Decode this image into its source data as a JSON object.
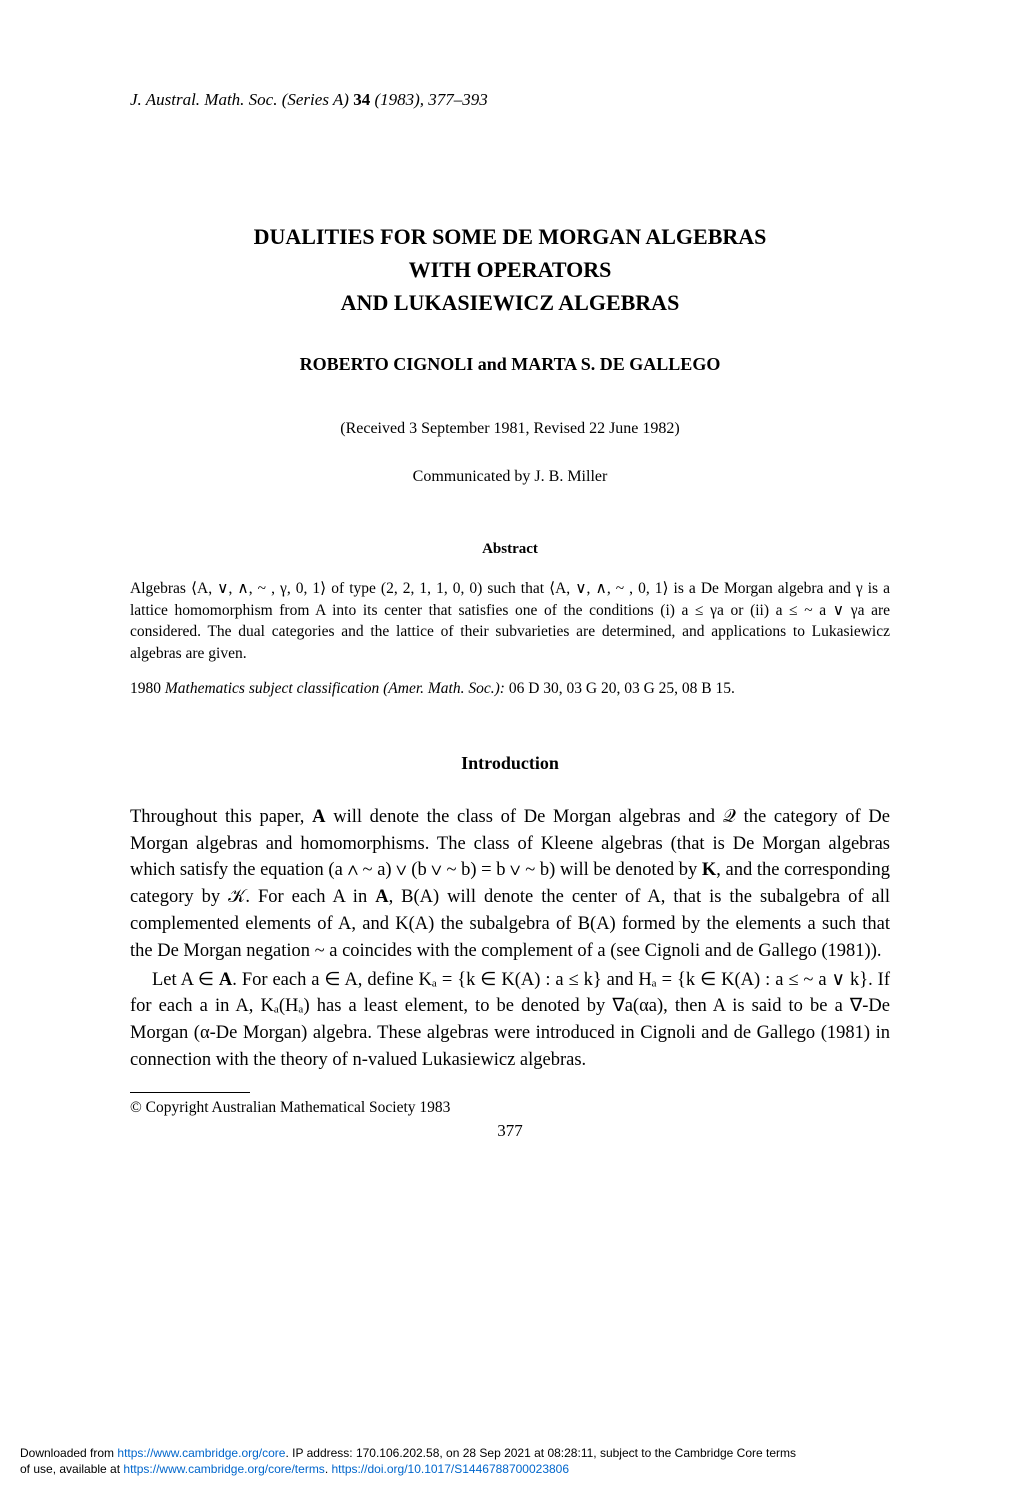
{
  "journal": {
    "name": "J. Austral. Math. Soc. (Series A)",
    "volume": "34",
    "year_pages": "(1983), 377–393"
  },
  "title": {
    "line1": "DUALITIES FOR SOME DE MORGAN ALGEBRAS",
    "line2": "WITH OPERATORS",
    "line3": "AND LUKASIEWICZ ALGEBRAS"
  },
  "authors": "ROBERTO CIGNOLI and MARTA S. DE GALLEGO",
  "received": "(Received 3 September 1981, Revised 22 June 1982)",
  "communicated": "Communicated by J. B. Miller",
  "abstract": {
    "heading": "Abstract",
    "text": "Algebras ⟨A, ∨, ∧, ~ , γ, 0, 1⟩ of type (2, 2, 1, 1, 0, 0) such that ⟨A, ∨, ∧, ~ , 0, 1⟩ is a De Morgan algebra and γ is a lattice homomorphism from A into its center that satisfies one of the conditions (i) a ≤ γa or (ii) a ≤ ~ a ∨ γa are considered. The dual categories and the lattice of their subvarieties are determined, and applications to Lukasiewicz algebras are given."
  },
  "msc": {
    "year": "1980",
    "label": "Mathematics subject classification (Amer. Math. Soc.):",
    "codes": "06 D 30, 03 G 20, 03 G 25, 08 B 15."
  },
  "intro": {
    "heading": "Introduction",
    "para1_pre": "Throughout this paper, ",
    "para1_A": "A",
    "para1_mid1": " will denote the class of De Morgan algebras and 𝒬 the category of De Morgan algebras and homomorphisms. The class of Kleene algebras (that is De Morgan algebras which satisfy the equation (a ∧ ~ a) ∨ (b ∨ ~ b) = b ∨ ~ b) will be denoted by ",
    "para1_K": "K",
    "para1_mid2": ", and the corresponding category by 𝒦. For each A in ",
    "para1_A2": "A",
    "para1_mid3": ", B(A) will denote the center of A, that is the subalgebra of all complemented elements of A, and K(A) the subalgebra of B(A) formed by the elements a such that the De Morgan negation ~ a coincides with the complement of a (see Cignoli and de Gallego (1981)).",
    "para2_pre": "Let A ∈ ",
    "para2_A": "A",
    "para2_mid": ". For each a ∈ A, define Kₐ = {k ∈ K(A) : a ≤ k} and Hₐ = {k ∈ K(A) : a ≤ ~ a ∨ k}. If for each a in A, Kₐ(Hₐ) has a least element, to be denoted by ∇a(αa), then A is said to be a ∇-De Morgan (α-De Morgan) algebra. These algebras were introduced in Cignoli and de Gallego (1981) in connection with the theory of n-valued Lukasiewicz algebras."
  },
  "footnote": "© Copyright Australian Mathematical Society 1983",
  "page_number": "377",
  "footer": {
    "pre1": "Downloaded from ",
    "link1": "https://www.cambridge.org/core",
    "mid1": ". IP address: 170.106.202.58, on 28 Sep 2021 at 08:28:11, subject to the Cambridge Core terms",
    "pre2": "of use, available at ",
    "link2": "https://www.cambridge.org/core/terms",
    "mid2": ". ",
    "link3": "https://doi.org/10.1017/S1446788700023806"
  }
}
